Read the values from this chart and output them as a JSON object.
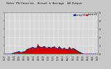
{
  "title": "Solar PV/Inverter  Actual & Average  kW Output",
  "title_fontsize": 3.5,
  "bg_color": "#c8c8c8",
  "plot_bg_color": "#d8d8d8",
  "bar_color": "#cc0000",
  "avg_line_color": "#0000cc",
  "grid_color": "#aaaaaa",
  "text_color": "#000000",
  "legend_actual_color": "#cc0000",
  "legend_avg_color": "#0000cc",
  "legend_label_actual": "Actual kW",
  "legend_label_avg": "Average kW",
  "ylabel_right": "kW",
  "ylim": [
    0,
    5.0
  ],
  "yticks": [
    0,
    1,
    2,
    3,
    4,
    5
  ],
  "bar_data": [
    0.0,
    0.0,
    0.0,
    0.0,
    0.0,
    0.0,
    0.0,
    0.0,
    0.0,
    0.0,
    0.05,
    0.08,
    0.12,
    0.15,
    0.18,
    0.2,
    0.22,
    0.25,
    0.28,
    0.3,
    0.25,
    0.2,
    0.18,
    0.22,
    0.25,
    0.28,
    0.3,
    0.35,
    0.38,
    0.55,
    0.62,
    0.65,
    0.68,
    0.7,
    0.72,
    0.75,
    0.8,
    0.82,
    0.75,
    0.7,
    0.72,
    0.68,
    0.9,
    1.2,
    1.05,
    0.95,
    0.88,
    0.8,
    0.78,
    0.85,
    0.9,
    0.95,
    0.88,
    0.8,
    0.75,
    0.78,
    0.82,
    0.85,
    0.8,
    0.75,
    0.72,
    0.78,
    0.82,
    0.85,
    0.88,
    0.8,
    0.75,
    0.72,
    0.68,
    0.65,
    0.82,
    0.9,
    0.72,
    0.68,
    0.62,
    0.65,
    0.68,
    0.72,
    0.68,
    0.62,
    0.58,
    0.52,
    0.6,
    0.75,
    0.82,
    0.65,
    0.58,
    0.6,
    0.65,
    0.68,
    0.62,
    0.55,
    0.48,
    0.42,
    0.38,
    0.32,
    0.28,
    0.22,
    0.15,
    0.1,
    0.06,
    0.02,
    0.0,
    0.0,
    0.0,
    0.0,
    0.0,
    0.0,
    0.0,
    0.0,
    0.0,
    0.0,
    0.0,
    0.0,
    0.0,
    0.0,
    0.0,
    0.0,
    0.0,
    0.0
  ],
  "avg_data": [
    0.0,
    0.0,
    0.0,
    0.0,
    0.0,
    0.0,
    0.0,
    0.0,
    0.0,
    0.0,
    0.04,
    0.07,
    0.1,
    0.13,
    0.16,
    0.19,
    0.21,
    0.24,
    0.27,
    0.29,
    0.24,
    0.19,
    0.17,
    0.21,
    0.24,
    0.27,
    0.29,
    0.34,
    0.37,
    0.52,
    0.59,
    0.62,
    0.65,
    0.67,
    0.7,
    0.73,
    0.77,
    0.79,
    0.73,
    0.68,
    0.7,
    0.66,
    0.82,
    0.95,
    0.88,
    0.8,
    0.76,
    0.74,
    0.75,
    0.8,
    0.85,
    0.89,
    0.83,
    0.76,
    0.72,
    0.75,
    0.79,
    0.82,
    0.77,
    0.73,
    0.7,
    0.75,
    0.79,
    0.82,
    0.85,
    0.77,
    0.73,
    0.7,
    0.66,
    0.63,
    0.78,
    0.85,
    0.7,
    0.66,
    0.6,
    0.63,
    0.66,
    0.7,
    0.66,
    0.6,
    0.56,
    0.5,
    0.58,
    0.72,
    0.79,
    0.63,
    0.56,
    0.58,
    0.63,
    0.66,
    0.6,
    0.53,
    0.46,
    0.4,
    0.36,
    0.3,
    0.26,
    0.2,
    0.13,
    0.08,
    0.04,
    0.01,
    0.0,
    0.0,
    0.0,
    0.0,
    0.0,
    0.0,
    0.0,
    0.0,
    0.0,
    0.0,
    0.0,
    0.0,
    0.0,
    0.0,
    0.0,
    0.0,
    0.0,
    0.0
  ],
  "xtick_labels": [
    "12-27",
    "01-10",
    "01-24",
    "02-07",
    "02-21",
    "03-07",
    "03-21",
    "04-04",
    "04-18",
    "05-02",
    "05-16",
    "05-30",
    "06-13",
    "06-27",
    "07-11",
    "07-25",
    "08-08",
    "08-22",
    "09-05",
    "09-19"
  ]
}
